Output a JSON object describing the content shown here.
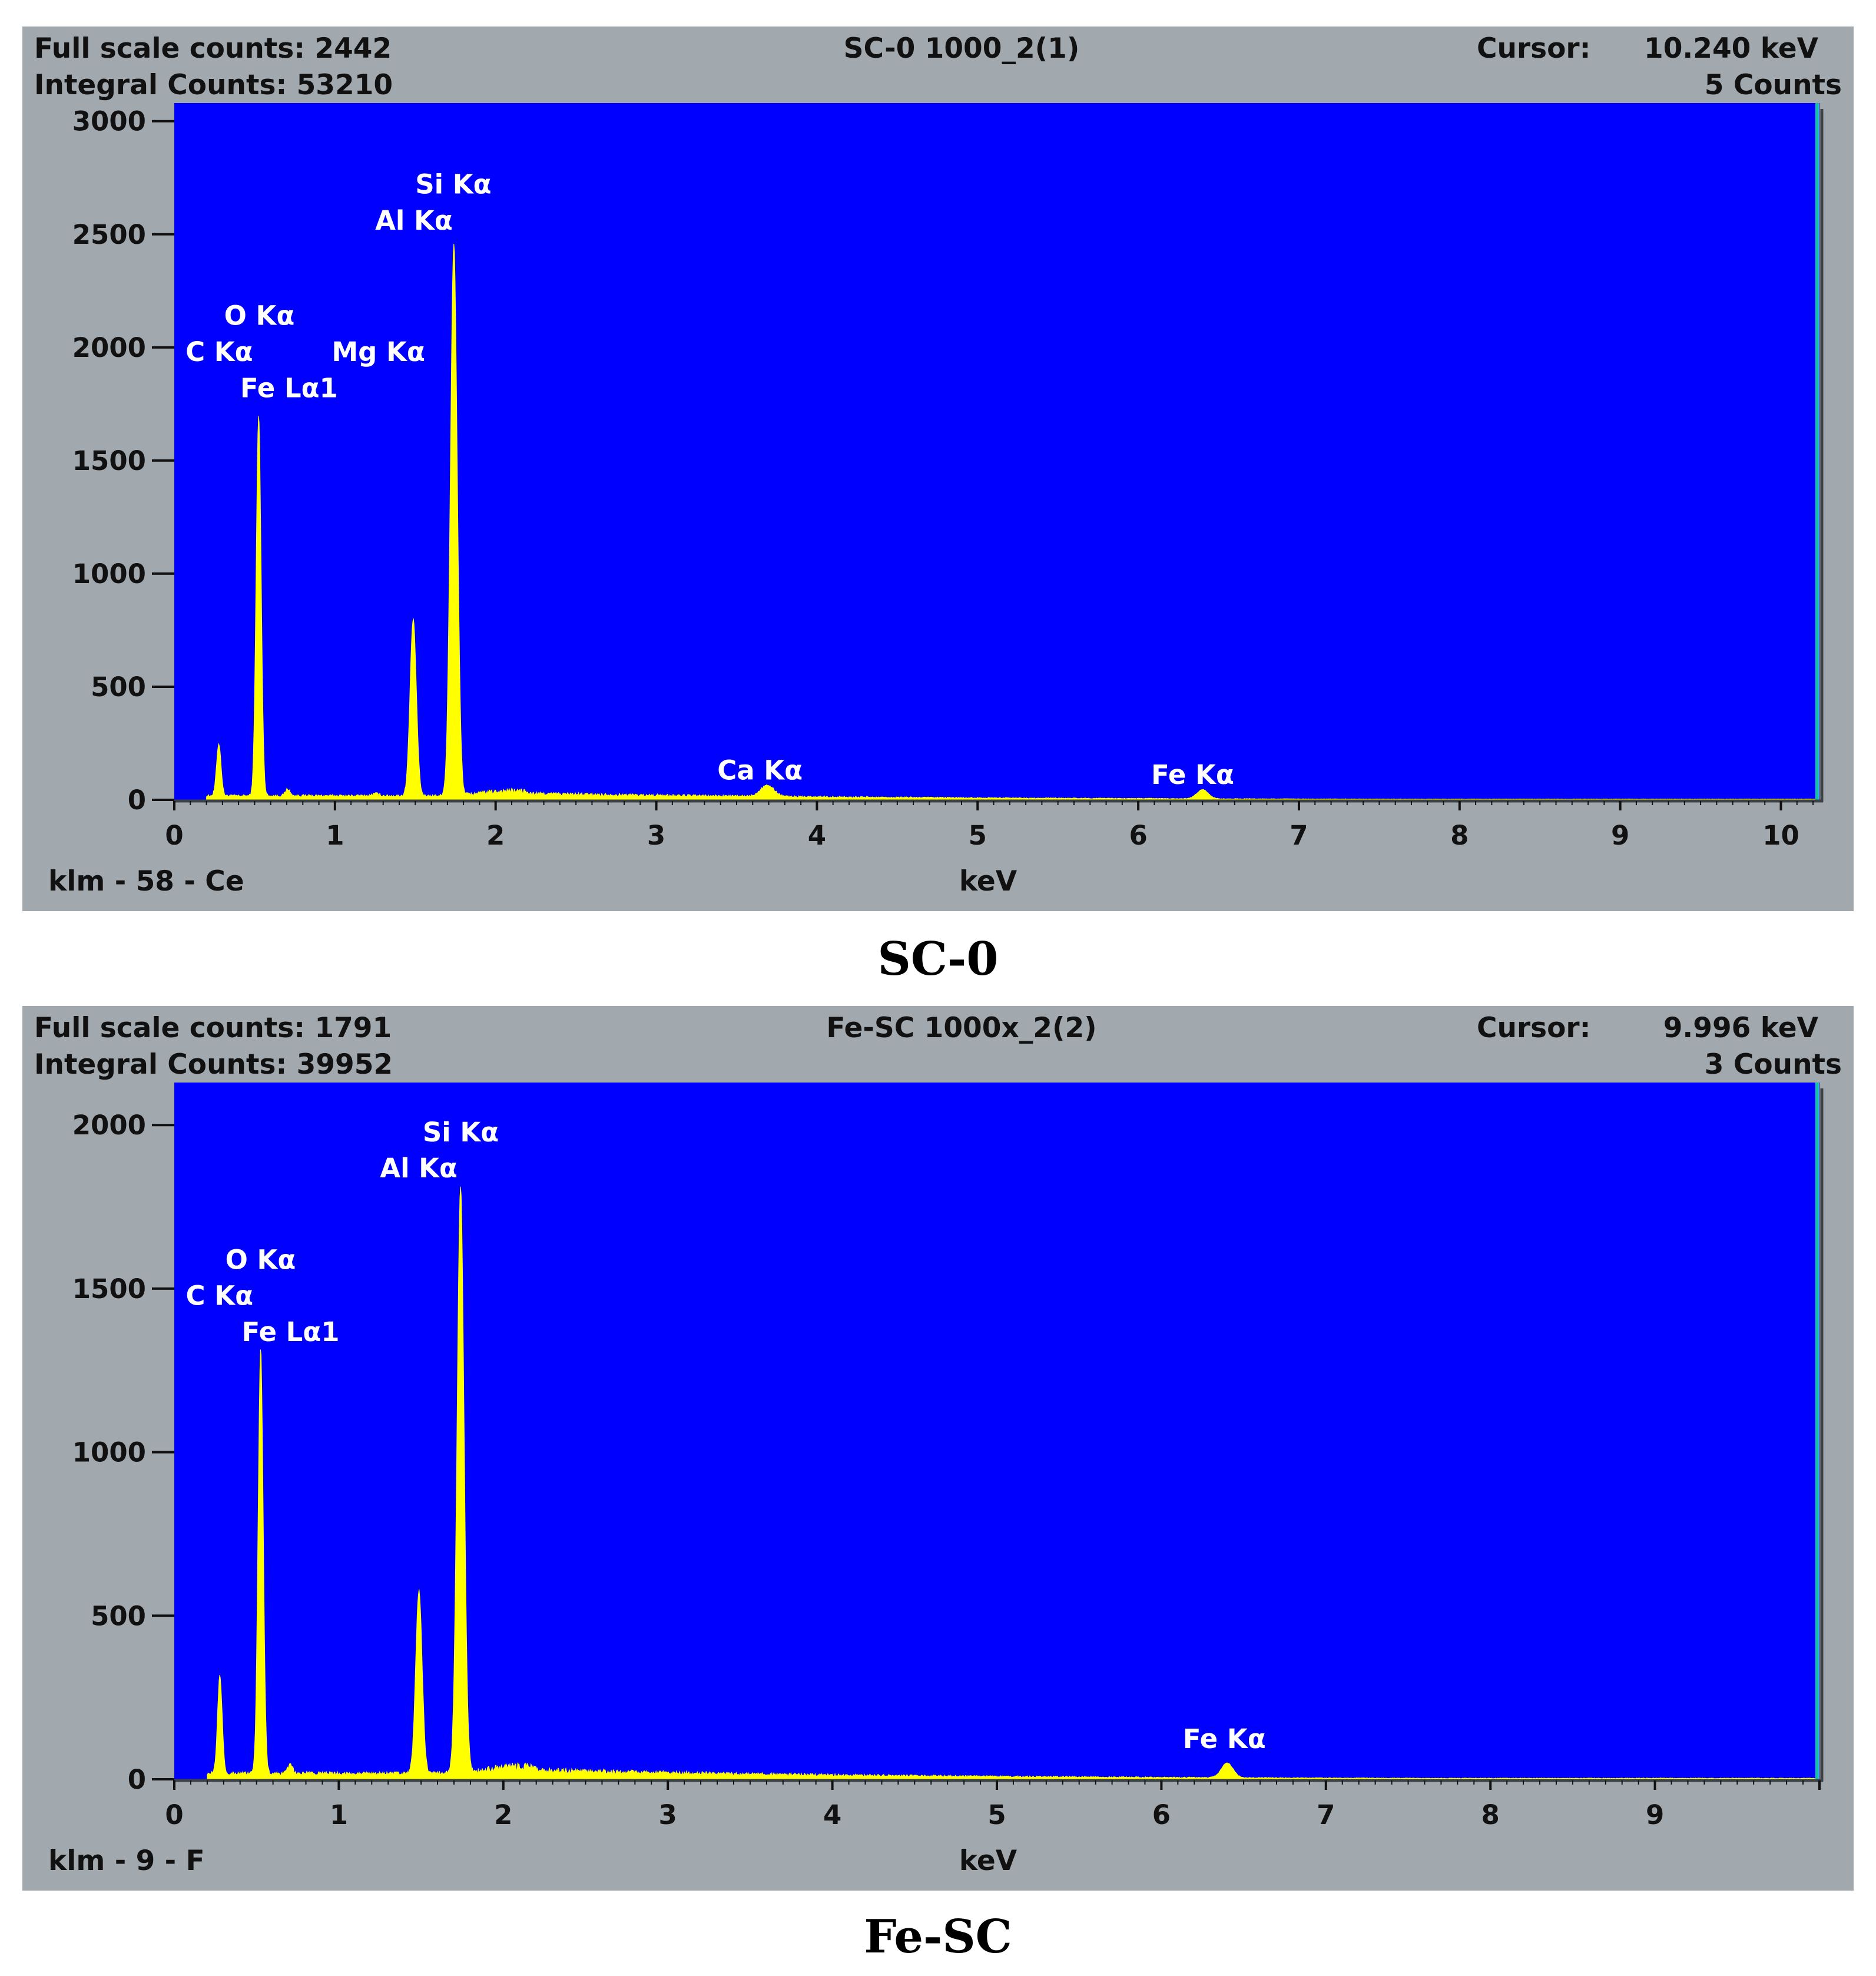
{
  "chart_data": [
    {
      "type": "area",
      "title": "SC-0 1000_2(1)",
      "caption": "SC-0",
      "full_scale_counts_label": "Full scale counts: 2442",
      "integral_counts_label": "Integral Counts: 53210",
      "cursor_label": "Cursor:",
      "cursor_kev": "10.240 keV",
      "cursor_counts": "5 Counts",
      "footer_left": "klm - 58 - Ce",
      "xlabel": "keV",
      "ylabel": "",
      "xlim": [
        0,
        10.24
      ],
      "ylim": [
        0,
        3080
      ],
      "x_ticks": [
        0,
        1,
        2,
        3,
        4,
        5,
        6,
        7,
        8,
        9,
        10
      ],
      "y_ticks": [
        0,
        500,
        1000,
        1500,
        2000,
        2500,
        3000
      ],
      "colors": {
        "plot_bg": "#0000ff",
        "spectrum": "#ffff00",
        "panel_bg": "#a2a9ae",
        "cursor_line": "#18c2a0"
      },
      "peaks": [
        {
          "x": 0.277,
          "y": 230,
          "width": 0.02,
          "peak_label": "C Kα"
        },
        {
          "x": 0.525,
          "y": 1680,
          "width": 0.022,
          "peak_label": "O Kα"
        },
        {
          "x": 0.705,
          "y": 30,
          "width": 0.02,
          "peak_label": "Fe Lα1"
        },
        {
          "x": 1.254,
          "y": 10,
          "width": 0.03,
          "peak_label": "Mg Kα"
        },
        {
          "x": 1.487,
          "y": 780,
          "width": 0.028,
          "peak_label": "Al Kα"
        },
        {
          "x": 1.74,
          "y": 2440,
          "width": 0.03,
          "peak_label": "Si Kα"
        },
        {
          "x": 3.69,
          "y": 50,
          "width": 0.06,
          "peak_label": "Ca Kα"
        },
        {
          "x": 6.4,
          "y": 40,
          "width": 0.05,
          "peak_label": "Fe Kα"
        }
      ],
      "peak_labels": [
        {
          "text": "Si Kα",
          "x": 1.5,
          "y": 2680
        },
        {
          "text": "Al Kα",
          "x": 1.25,
          "y": 2520
        },
        {
          "text": "O Kα",
          "x": 0.31,
          "y": 2100
        },
        {
          "text": "C Kα",
          "x": 0.07,
          "y": 1940
        },
        {
          "text": "Mg Kα",
          "x": 0.98,
          "y": 1940
        },
        {
          "text": "Fe Lα1",
          "x": 0.41,
          "y": 1780
        },
        {
          "text": "Ca Kα",
          "x": 3.38,
          "y": 90
        },
        {
          "text": "Fe Kα",
          "x": 6.08,
          "y": 70
        }
      ]
    },
    {
      "type": "area",
      "title": "Fe-SC 1000x_2(2)",
      "caption": "Fe-SC",
      "full_scale_counts_label": "Full scale counts: 1791",
      "integral_counts_label": "Integral Counts: 39952",
      "cursor_label": "Cursor:",
      "cursor_kev": "9.996 keV",
      "cursor_counts": "3 Counts",
      "footer_left": "klm - 9 - F",
      "xlabel": "keV",
      "ylabel": "",
      "xlim": [
        0,
        10.0
      ],
      "ylim": [
        0,
        2130
      ],
      "x_ticks": [
        0,
        1,
        2,
        3,
        4,
        5,
        6,
        7,
        8,
        9
      ],
      "y_ticks": [
        0,
        500,
        1000,
        1500,
        2000
      ],
      "colors": {
        "plot_bg": "#0000ff",
        "spectrum": "#ffff00",
        "panel_bg": "#a2a9ae",
        "cursor_line": "#18c2a0"
      },
      "peaks": [
        {
          "x": 0.277,
          "y": 300,
          "width": 0.02,
          "peak_label": "C Kα"
        },
        {
          "x": 0.525,
          "y": 1300,
          "width": 0.022,
          "peak_label": "O Kα"
        },
        {
          "x": 0.705,
          "y": 30,
          "width": 0.02,
          "peak_label": "Fe Lα1"
        },
        {
          "x": 1.487,
          "y": 560,
          "width": 0.028,
          "peak_label": "Al Kα"
        },
        {
          "x": 1.74,
          "y": 1790,
          "width": 0.03,
          "peak_label": "Si Kα"
        },
        {
          "x": 6.4,
          "y": 45,
          "width": 0.05,
          "peak_label": "Fe Kα"
        }
      ],
      "peak_labels": [
        {
          "text": "Si Kα",
          "x": 1.51,
          "y": 1950
        },
        {
          "text": "Al Kα",
          "x": 1.25,
          "y": 1840
        },
        {
          "text": "O Kα",
          "x": 0.31,
          "y": 1560
        },
        {
          "text": "C Kα",
          "x": 0.07,
          "y": 1450
        },
        {
          "text": "Fe Lα1",
          "x": 0.41,
          "y": 1340
        },
        {
          "text": "Fe Kα",
          "x": 6.13,
          "y": 95
        }
      ]
    }
  ]
}
